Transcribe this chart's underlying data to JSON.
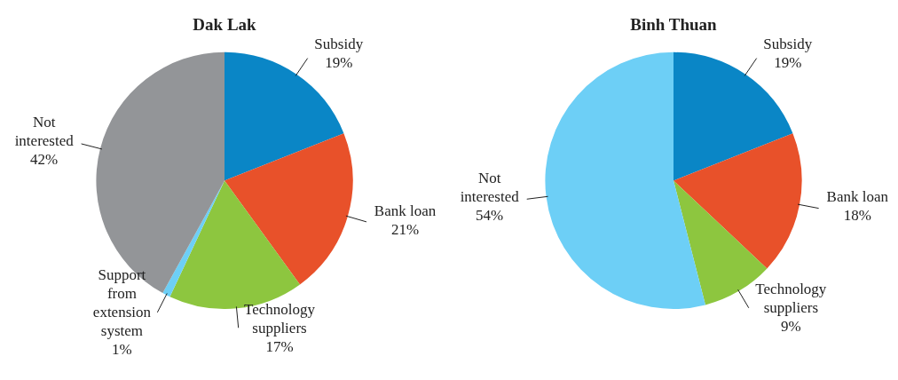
{
  "chart_data": [
    {
      "type": "pie",
      "title": "Dak Lak",
      "categories": [
        "Subsidy",
        "Bank loan",
        "Technology suppliers",
        "Support from extension system",
        "Not interested"
      ],
      "values": [
        19,
        21,
        17,
        1,
        42
      ],
      "value_labels": [
        "19%",
        "21%",
        "17%",
        "1%",
        "42%"
      ],
      "colors": [
        "#0a86c6",
        "#e8512a",
        "#8dc63f",
        "#6dcff6",
        "#939598"
      ],
      "legend": false
    },
    {
      "type": "pie",
      "title": "Binh Thuan",
      "categories": [
        "Subsidy",
        "Bank loan",
        "Technology suppliers",
        "Not interested"
      ],
      "values": [
        19,
        18,
        9,
        54
      ],
      "value_labels": [
        "19%",
        "18%",
        "9%",
        "54%"
      ],
      "colors": [
        "#0a86c6",
        "#e8512a",
        "#8dc63f",
        "#6dcff6"
      ],
      "legend": false
    }
  ]
}
